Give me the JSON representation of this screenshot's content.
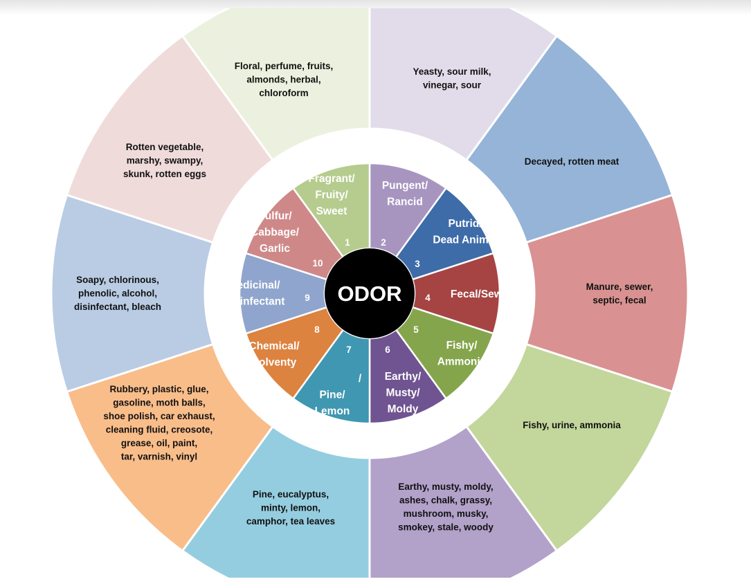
{
  "center_label": "ODOR",
  "categories": [
    {
      "number": "1",
      "name": [
        "Fragrant/",
        "Fruity/",
        "Sweet"
      ],
      "descriptors": [
        "Floral, perfume, fruits,",
        "almonds, herbal,",
        "chloroform"
      ],
      "inner_color": "#a795c0",
      "outer_color": "#e2dcea"
    },
    {
      "number": "2",
      "name": [
        "Pungent/",
        "Rancid"
      ],
      "descriptors": [
        "Yeasty, sour milk,",
        "vinegar, sour"
      ],
      "inner_color": "#3d6ca8",
      "outer_color": "#95b4d8"
    },
    {
      "number": "3",
      "name": [
        "Putrid/",
        "Dead Animal"
      ],
      "descriptors": [
        "Decayed, rotten meat"
      ],
      "inner_color": "#a64444",
      "outer_color": "#d99291"
    },
    {
      "number": "4",
      "name": [
        "Fecal/Sewery"
      ],
      "descriptors": [
        "Manure, sewer,",
        "septic, fecal"
      ],
      "inner_color": "#85a54c",
      "outer_color": "#c3d69c"
    },
    {
      "number": "5",
      "name": [
        "Fishy/",
        "Ammonia"
      ],
      "descriptors": [
        "Fishy, urine, ammonia"
      ],
      "inner_color": "#6f5491",
      "outer_color": "#b2a1c9"
    },
    {
      "number": "6",
      "name": [
        "Earthy/",
        "Musty/",
        "Moldy"
      ],
      "descriptors": [
        "Earthy, musty, moldy,",
        "ashes, chalk, grassy,",
        "mushroom, musky,",
        "smokey, stale, woody"
      ],
      "inner_color": "#4097b1",
      "outer_color": "#95cde0"
    },
    {
      "number": "7",
      "name": [
        "/",
        "Pine/",
        "Lemon"
      ],
      "descriptors": [
        "Pine, eucalyptus,",
        "minty, lemon,",
        "camphor, tea leaves"
      ],
      "inner_color": "#dc8340",
      "outer_color": "#f9bd8a"
    },
    {
      "number": "8",
      "name": [
        "Chemical/",
        "Solventy"
      ],
      "descriptors": [
        "Rubbery, plastic, glue,",
        "gasoline, moth balls,",
        "shoe polish, car exhaust,",
        "cleaning fluid, creosote,",
        "grease, oil, paint,",
        "tar, varnish, vinyl"
      ],
      "inner_color": "#8fa5cd",
      "outer_color": "#b9cce4"
    },
    {
      "number": "9",
      "name": [
        "Medicinal/",
        "Disinfectant"
      ],
      "descriptors": [
        "Soapy, chlorinous,",
        "phenolic, alcohol,",
        "disinfectant, bleach"
      ],
      "inner_color": "#cf8888",
      "outer_color": "#f0dbdb"
    },
    {
      "number": "10",
      "name": [
        "Sulfur/",
        "Cabbage/",
        "Garlic"
      ],
      "descriptors": [
        "Rotten vegetable,",
        "marshy, swampy,",
        "skunk, rotten eggs"
      ],
      "inner_color": "#b5cc8e",
      "outer_color": "#ebf1de"
    }
  ]
}
